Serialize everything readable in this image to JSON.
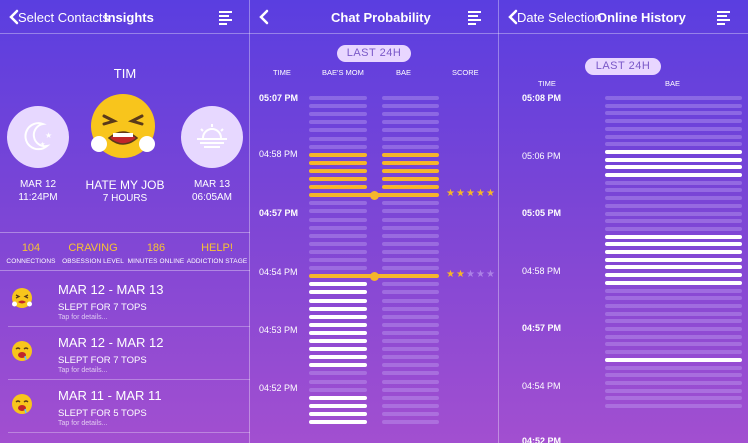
{
  "colors": {
    "yellow": "#f5b52b",
    "white": "#ffffff",
    "faint": "rgba(200,175,245,0.35)"
  },
  "panel1": {
    "back_label": "Select Contacts",
    "title": "Insights",
    "user_name": "TIM",
    "left_circle": {
      "icon": "moon-stars-icon",
      "date": "MAR 12",
      "time": "11:24PM"
    },
    "center": {
      "icon": "tired-face-emoji-icon",
      "title": "HATE MY JOB",
      "subtitle": "7 HOURS"
    },
    "right_circle": {
      "icon": "sunrise-icon",
      "date": "MAR 13",
      "time": "06:05AM"
    },
    "stats": [
      {
        "value": "104",
        "label": "CONNECTIONS"
      },
      {
        "value": "CRAVING",
        "label": "OBSESSION LEVEL"
      },
      {
        "value": "186",
        "label": "MINUTES ONLINE"
      },
      {
        "value": "HELP!",
        "label": "ADDICTION STAGE"
      }
    ],
    "rows": [
      {
        "dates": "MAR 12 - MAR 13",
        "summary": "SLEPT FOR 7 TOPS",
        "hint": "Tap for details...",
        "icon": "tired-face-emoji-icon"
      },
      {
        "dates": "MAR 12 - MAR 12",
        "summary": "SLEPT FOR 7 TOPS",
        "hint": "Tap for details...",
        "icon": "drooling-face-emoji-icon"
      },
      {
        "dates": "MAR 11 - MAR 11",
        "summary": "SLEPT FOR 5 TOPS",
        "hint": "Tap for details...",
        "icon": "drooling-face-emoji-icon"
      }
    ]
  },
  "panel2": {
    "title": "Chat Probability",
    "range_pill": "LAST 24H",
    "col_time": "TIME",
    "col_a": "BAE'S MOM",
    "col_b": "BAE",
    "col_score": "SCORE",
    "time_labels": [
      {
        "text": "05:07 PM",
        "bold": true
      },
      {
        "text": "04:58 PM",
        "bold": false
      },
      {
        "text": "04:57 PM",
        "bold": true
      },
      {
        "text": "04:54 PM",
        "bold": false
      },
      {
        "text": "04:53 PM",
        "bold": false
      },
      {
        "text": "04:52 PM",
        "bold": false
      }
    ],
    "rows": [
      "f",
      "f",
      "f",
      "f",
      "f",
      "f",
      "f",
      "y",
      "y",
      "y",
      "y",
      "y",
      "Y",
      "f",
      "f",
      "f",
      "f",
      "f",
      "f",
      "f",
      "f",
      "f",
      "Z",
      "w",
      "w",
      "w",
      "w",
      "w",
      "w",
      "w",
      "w",
      "w",
      "w",
      "w",
      "f",
      "f",
      "f",
      "w",
      "w",
      "w",
      "w"
    ],
    "scores": [
      {
        "row": 12,
        "stars": 5
      },
      {
        "row": 22,
        "stars": 2
      }
    ]
  },
  "panel3": {
    "back_label": "Date Selection",
    "title": "Online History",
    "range_pill": "LAST 24H",
    "col_time": "TIME",
    "col_a": "BAE",
    "time_labels": [
      {
        "text": "05:08 PM",
        "bold": true
      },
      {
        "text": "05:06 PM",
        "bold": false
      },
      {
        "text": "05:05 PM",
        "bold": true
      },
      {
        "text": "04:58 PM",
        "bold": false
      },
      {
        "text": "04:57 PM",
        "bold": true
      },
      {
        "text": "04:54 PM",
        "bold": false
      },
      {
        "text": "04:52 PM",
        "bold": true
      }
    ],
    "rows": [
      "f",
      "f",
      "f",
      "f",
      "f",
      "f",
      "f",
      "w",
      "w",
      "w",
      "w",
      "f",
      "f",
      "f",
      "f",
      "f",
      "f",
      "f",
      "w",
      "w",
      "w",
      "w",
      "w",
      "w",
      "w",
      "f",
      "f",
      "f",
      "f",
      "f",
      "f",
      "f",
      "f",
      "f",
      "w",
      "f",
      "f",
      "f",
      "f",
      "f",
      "f"
    ]
  }
}
